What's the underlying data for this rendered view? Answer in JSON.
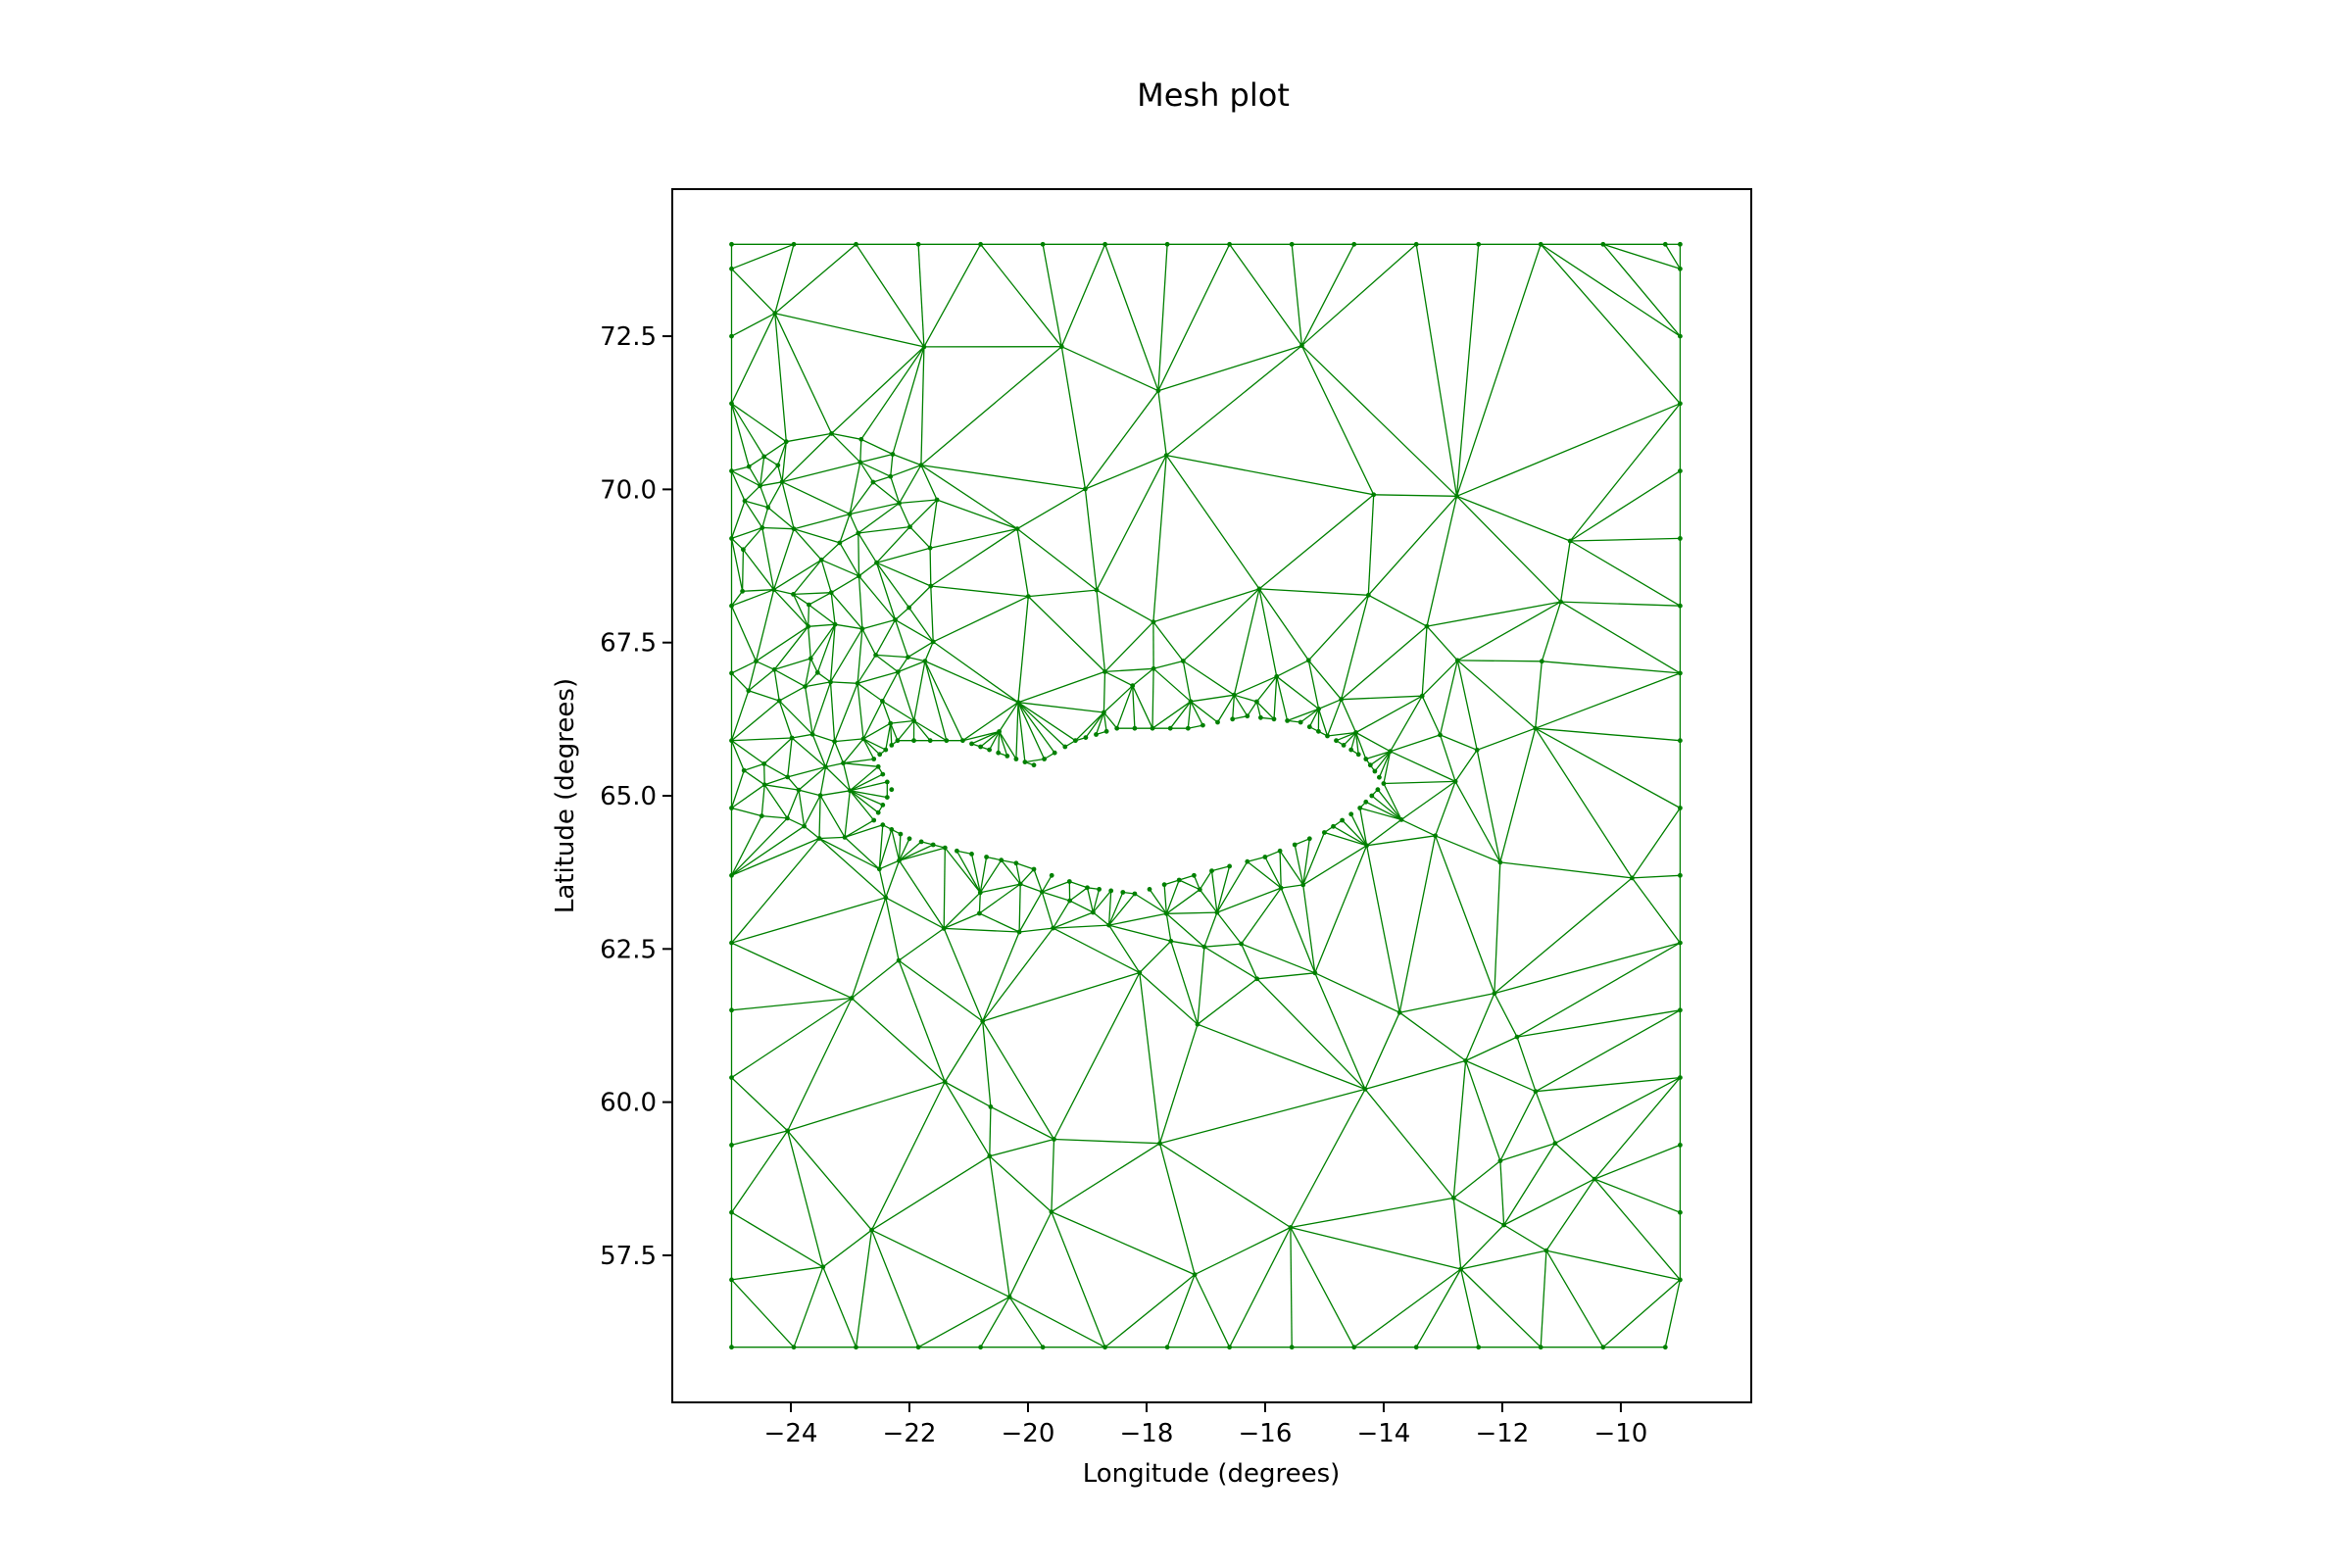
{
  "chart_data": {
    "type": "scatter",
    "title": "Mesh plot",
    "xlabel": "Longitude (degrees)",
    "ylabel": "Latitude (degrees)",
    "xlim": [
      -26.0,
      -7.8
    ],
    "ylim": [
      55.1,
      74.9
    ],
    "xticks": [
      -24,
      -22,
      -20,
      -18,
      -16,
      -14,
      -12,
      -10
    ],
    "yticks": [
      57.5,
      60.0,
      62.5,
      65.0,
      67.5,
      70.0,
      72.5
    ],
    "xtick_labels": [
      "−24",
      "−22",
      "−20",
      "−18",
      "−16",
      "−14",
      "−12",
      "−10"
    ],
    "ytick_labels": [
      "57.5",
      "60.0",
      "62.5",
      "65.0",
      "67.5",
      "70.0",
      "72.5"
    ],
    "grid": false,
    "legend": "none",
    "mesh_color": "#008000",
    "domain": {
      "lon_min": -25.0,
      "lon_max": -9.0,
      "lat_min": 56.0,
      "lat_max": 74.0
    },
    "island_outline": [
      [
        -19.9,
        65.5
      ],
      [
        -19.2,
        65.9
      ],
      [
        -18.5,
        66.1
      ],
      [
        -17.3,
        66.1
      ],
      [
        -16.3,
        66.3
      ],
      [
        -15.4,
        66.2
      ],
      [
        -14.8,
        65.9
      ],
      [
        -14.3,
        65.6
      ],
      [
        -14.0,
        65.2
      ],
      [
        -14.4,
        64.8
      ],
      [
        -15.0,
        64.4
      ],
      [
        -16.0,
        64.0
      ],
      [
        -17.2,
        63.7
      ],
      [
        -18.2,
        63.4
      ],
      [
        -19.0,
        63.5
      ],
      [
        -20.2,
        63.9
      ],
      [
        -21.2,
        64.1
      ],
      [
        -22.0,
        64.3
      ],
      [
        -22.6,
        64.6
      ],
      [
        -22.3,
        65.1
      ],
      [
        -22.6,
        65.6
      ],
      [
        -22.2,
        65.9
      ],
      [
        -21.1,
        65.9
      ],
      [
        -20.5,
        65.7
      ]
    ]
  }
}
